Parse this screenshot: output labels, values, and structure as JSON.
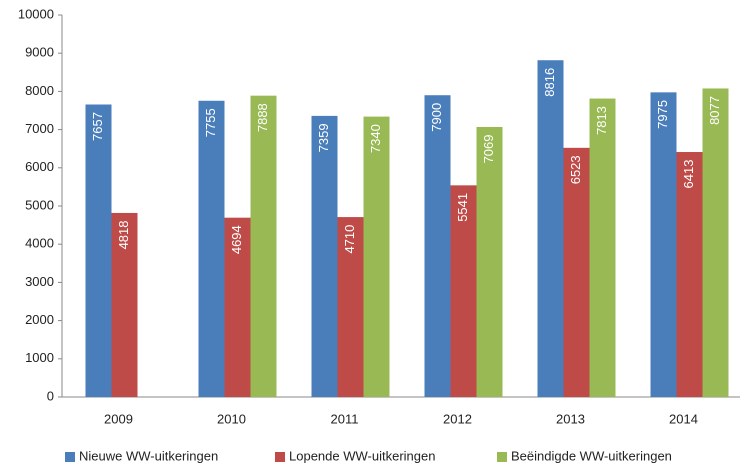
{
  "chart_data": {
    "type": "bar",
    "categories": [
      "2009",
      "2010",
      "2011",
      "2012",
      "2013",
      "2014"
    ],
    "series": [
      {
        "name": "Nieuwe WW-uitkeringen",
        "color": "#4a7ebb",
        "values": [
          7657,
          7755,
          7359,
          7900,
          8816,
          7975
        ]
      },
      {
        "name": "Lopende WW-uitkeringen",
        "color": "#be4b48",
        "values": [
          4818,
          4694,
          4710,
          5541,
          6523,
          6413
        ]
      },
      {
        "name": "Beëindigde WW-uitkeringen",
        "color": "#98b954",
        "values": [
          null,
          7888,
          7340,
          7069,
          7813,
          8077
        ]
      }
    ],
    "ylim": [
      0,
      10000
    ],
    "yticks": [
      0,
      1000,
      2000,
      3000,
      4000,
      5000,
      6000,
      7000,
      8000,
      9000,
      10000
    ],
    "grid": false,
    "legend": "bottom"
  }
}
